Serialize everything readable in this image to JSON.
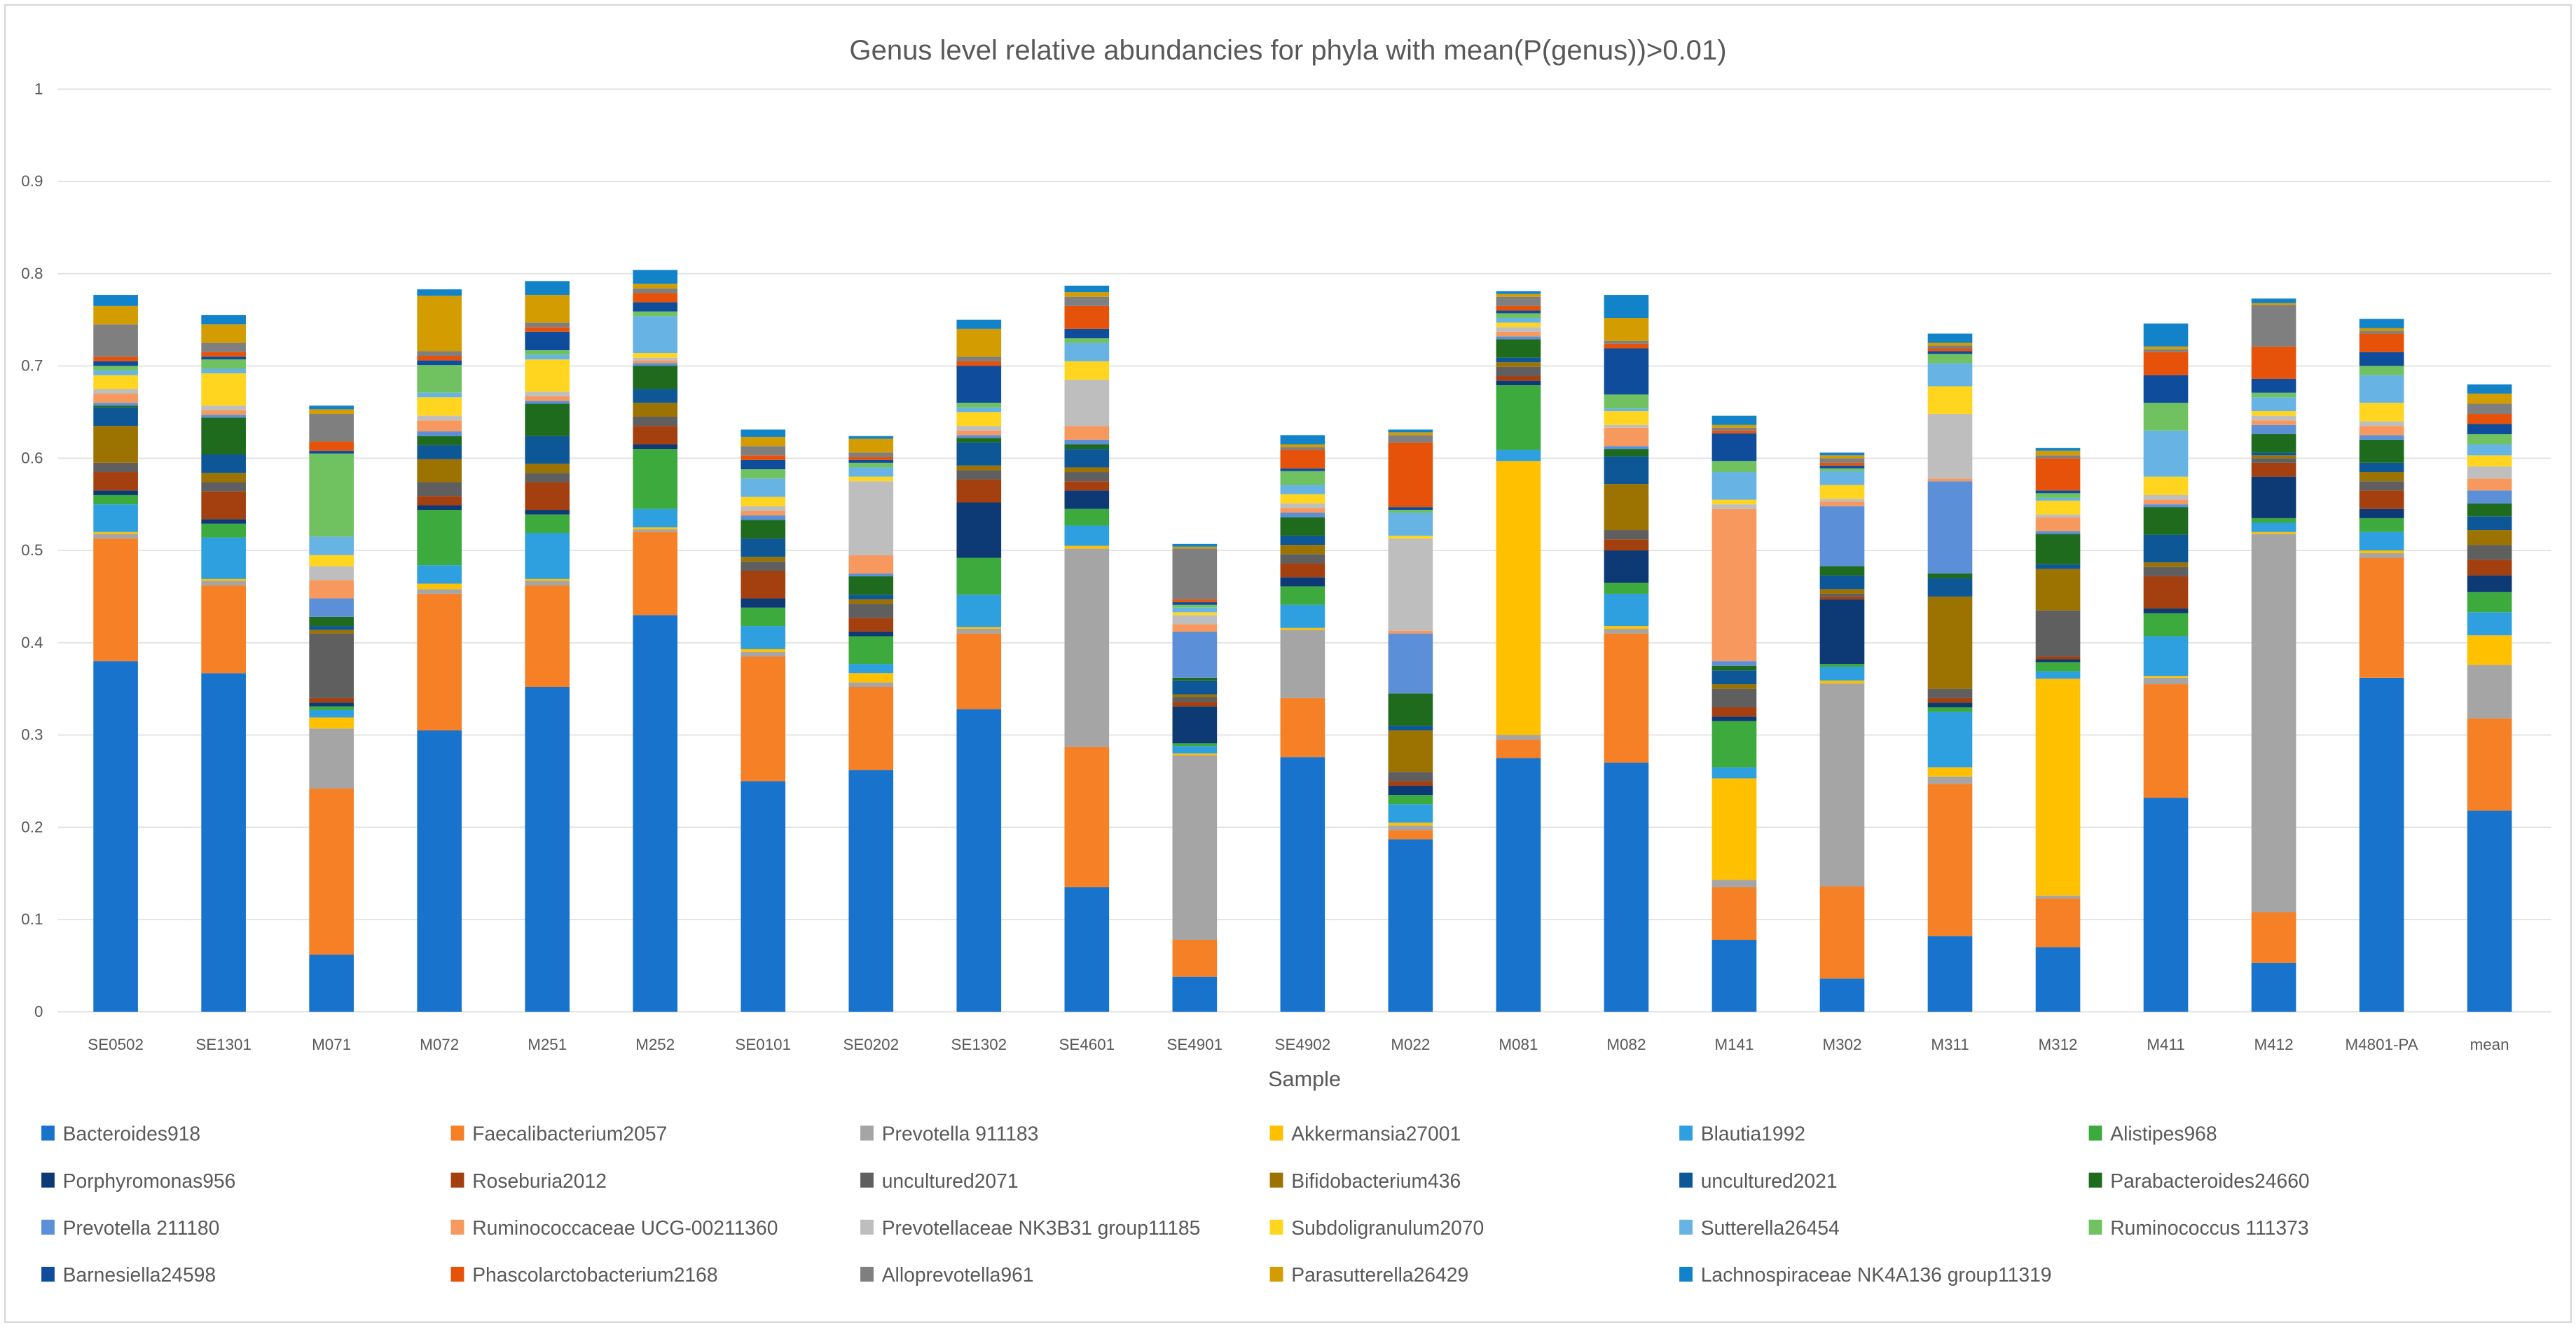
{
  "chart_data": {
    "type": "bar",
    "stacked": true,
    "title": "Genus level relative abundancies for phyla with mean(P(genus))>0.01)",
    "xlabel": "Sample",
    "ylabel": "",
    "ylim": [
      0,
      1
    ],
    "yticks": [
      "0",
      "0.1",
      "0.2",
      "0.3",
      "0.4",
      "0.5",
      "0.6",
      "0.7",
      "0.8",
      "0.9",
      "1"
    ],
    "grid": true,
    "legend_position": "bottom",
    "categories": [
      "SE0502",
      "SE1301",
      "M071",
      "M072",
      "M251",
      "M252",
      "SE0101",
      "SE0202",
      "SE1302",
      "SE4601",
      "SE4901",
      "SE4902",
      "M022",
      "M081",
      "M082",
      "M141",
      "M302",
      "M311",
      "M312",
      "M411",
      "M412",
      "M4801-PA",
      "mean"
    ],
    "series": [
      {
        "name": "Bacteroides918",
        "color": "#1873CC",
        "values": [
          0.38,
          0.367,
          0.062,
          0.305,
          0.352,
          0.43,
          0.25,
          0.262,
          0.328,
          0.135,
          0.038,
          0.276,
          0.187,
          0.275,
          0.27,
          0.078,
          0.036,
          0.082,
          0.07,
          0.232,
          0.053,
          0.362,
          0.218
        ]
      },
      {
        "name": "Faecalibacterium2057",
        "color": "#F58025",
        "values": [
          0.133,
          0.095,
          0.18,
          0.148,
          0.11,
          0.09,
          0.135,
          0.09,
          0.082,
          0.152,
          0.04,
          0.064,
          0.01,
          0.02,
          0.14,
          0.057,
          0.1,
          0.165,
          0.053,
          0.123,
          0.055,
          0.13,
          0.1
        ]
      },
      {
        "name": "Prevotella 911183",
        "color": "#A5A5A5",
        "values": [
          0.005,
          0.005,
          0.065,
          0.005,
          0.005,
          0.003,
          0.005,
          0.005,
          0.005,
          0.215,
          0.2,
          0.074,
          0.005,
          0.005,
          0.005,
          0.008,
          0.22,
          0.008,
          0.003,
          0.007,
          0.41,
          0.005,
          0.058
        ]
      },
      {
        "name": "Akkermansia27001",
        "color": "#FFC000",
        "values": [
          0.002,
          0.002,
          0.012,
          0.006,
          0.002,
          0.002,
          0.003,
          0.01,
          0.002,
          0.003,
          0.002,
          0.002,
          0.003,
          0.297,
          0.003,
          0.11,
          0.003,
          0.01,
          0.235,
          0.002,
          0.002,
          0.003,
          0.032
        ]
      },
      {
        "name": "Blautia1992",
        "color": "#2FA0DF",
        "values": [
          0.03,
          0.045,
          0.008,
          0.02,
          0.05,
          0.02,
          0.025,
          0.01,
          0.035,
          0.022,
          0.008,
          0.025,
          0.02,
          0.012,
          0.035,
          0.012,
          0.015,
          0.06,
          0.008,
          0.043,
          0.01,
          0.02,
          0.025
        ]
      },
      {
        "name": "Alistipes968",
        "color": "#3DAA3D",
        "values": [
          0.01,
          0.015,
          0.004,
          0.06,
          0.02,
          0.065,
          0.02,
          0.03,
          0.04,
          0.018,
          0.003,
          0.02,
          0.01,
          0.07,
          0.012,
          0.05,
          0.003,
          0.005,
          0.01,
          0.025,
          0.005,
          0.015,
          0.022
        ]
      },
      {
        "name": "Porphyromonas956",
        "color": "#0D3A75",
        "values": [
          0.005,
          0.005,
          0.004,
          0.005,
          0.005,
          0.005,
          0.01,
          0.005,
          0.06,
          0.02,
          0.04,
          0.01,
          0.01,
          0.005,
          0.035,
          0.005,
          0.07,
          0.005,
          0.003,
          0.005,
          0.045,
          0.01,
          0.018
        ]
      },
      {
        "name": "Roseburia2012",
        "color": "#A4400F",
        "values": [
          0.02,
          0.03,
          0.005,
          0.01,
          0.03,
          0.02,
          0.03,
          0.015,
          0.025,
          0.01,
          0.005,
          0.015,
          0.005,
          0.005,
          0.012,
          0.01,
          0.003,
          0.005,
          0.003,
          0.035,
          0.015,
          0.02,
          0.017
        ]
      },
      {
        "name": "uncultured2071",
        "color": "#5F5F5F",
        "values": [
          0.01,
          0.01,
          0.07,
          0.015,
          0.01,
          0.01,
          0.01,
          0.015,
          0.01,
          0.01,
          0.005,
          0.01,
          0.01,
          0.01,
          0.01,
          0.02,
          0.003,
          0.01,
          0.05,
          0.01,
          0.005,
          0.01,
          0.016
        ]
      },
      {
        "name": "Bifidobacterium436",
        "color": "#9C7200",
        "values": [
          0.04,
          0.01,
          0.004,
          0.025,
          0.01,
          0.015,
          0.005,
          0.005,
          0.005,
          0.005,
          0.003,
          0.01,
          0.045,
          0.005,
          0.05,
          0.005,
          0.005,
          0.1,
          0.045,
          0.005,
          0.003,
          0.01,
          0.016
        ]
      },
      {
        "name": "uncultured2021",
        "color": "#0E5796",
        "values": [
          0.02,
          0.02,
          0.004,
          0.015,
          0.03,
          0.015,
          0.02,
          0.005,
          0.025,
          0.02,
          0.015,
          0.01,
          0.005,
          0.005,
          0.03,
          0.015,
          0.015,
          0.02,
          0.005,
          0.03,
          0.003,
          0.01,
          0.015
        ]
      },
      {
        "name": "Parabacteroides24660",
        "color": "#1E6B1E",
        "values": [
          0.002,
          0.04,
          0.01,
          0.01,
          0.035,
          0.025,
          0.02,
          0.02,
          0.005,
          0.005,
          0.003,
          0.02,
          0.035,
          0.02,
          0.008,
          0.005,
          0.01,
          0.005,
          0.033,
          0.03,
          0.02,
          0.025,
          0.014
        ]
      },
      {
        "name": "Prevotella 211180",
        "color": "#5B8FD8",
        "values": [
          0.003,
          0.003,
          0.02,
          0.005,
          0.003,
          0.003,
          0.005,
          0.003,
          0.003,
          0.005,
          0.05,
          0.005,
          0.065,
          0.003,
          0.003,
          0.005,
          0.065,
          0.1,
          0.003,
          0.003,
          0.01,
          0.005,
          0.014
        ]
      },
      {
        "name": "Ruminococcaceae UCG-00211360",
        "color": "#F7995F",
        "values": [
          0.01,
          0.005,
          0.02,
          0.012,
          0.005,
          0.003,
          0.005,
          0.02,
          0.005,
          0.015,
          0.008,
          0.005,
          0.003,
          0.005,
          0.02,
          0.165,
          0.005,
          0.003,
          0.015,
          0.005,
          0.005,
          0.01,
          0.013
        ]
      },
      {
        "name": "Prevotellaceae NK3B31 group11185",
        "color": "#BEBEBE",
        "values": [
          0.005,
          0.005,
          0.015,
          0.005,
          0.005,
          0.003,
          0.005,
          0.08,
          0.005,
          0.05,
          0.01,
          0.005,
          0.1,
          0.005,
          0.003,
          0.005,
          0.003,
          0.07,
          0.003,
          0.005,
          0.005,
          0.005,
          0.013
        ]
      },
      {
        "name": "Subdoligranulum2070",
        "color": "#FFD520",
        "values": [
          0.015,
          0.035,
          0.012,
          0.02,
          0.035,
          0.005,
          0.01,
          0.005,
          0.015,
          0.02,
          0.003,
          0.01,
          0.003,
          0.005,
          0.015,
          0.005,
          0.015,
          0.03,
          0.015,
          0.02,
          0.005,
          0.02,
          0.012
        ]
      },
      {
        "name": "Sutterella26454",
        "color": "#67B4E4",
        "values": [
          0.005,
          0.005,
          0.02,
          0.005,
          0.005,
          0.04,
          0.02,
          0.01,
          0.005,
          0.02,
          0.005,
          0.01,
          0.025,
          0.005,
          0.003,
          0.03,
          0.015,
          0.025,
          0.003,
          0.05,
          0.015,
          0.03,
          0.012
        ]
      },
      {
        "name": "Ruminococcus 111373",
        "color": "#70C260",
        "values": [
          0.005,
          0.01,
          0.09,
          0.03,
          0.005,
          0.005,
          0.01,
          0.005,
          0.005,
          0.005,
          0.003,
          0.015,
          0.003,
          0.005,
          0.015,
          0.012,
          0.003,
          0.01,
          0.005,
          0.03,
          0.005,
          0.01,
          0.011
        ]
      },
      {
        "name": "Barnesiella24598",
        "color": "#0F4C9B",
        "values": [
          0.005,
          0.003,
          0.003,
          0.005,
          0.02,
          0.01,
          0.01,
          0.003,
          0.04,
          0.01,
          0.003,
          0.003,
          0.003,
          0.003,
          0.05,
          0.03,
          0.003,
          0.003,
          0.003,
          0.03,
          0.015,
          0.015,
          0.011
        ]
      },
      {
        "name": "Phascolarctobacterium2168",
        "color": "#E6520A",
        "values": [
          0.005,
          0.005,
          0.01,
          0.005,
          0.005,
          0.01,
          0.005,
          0.003,
          0.005,
          0.025,
          0.003,
          0.02,
          0.07,
          0.005,
          0.005,
          0.003,
          0.003,
          0.003,
          0.035,
          0.025,
          0.035,
          0.02,
          0.011
        ]
      },
      {
        "name": "Alloprevotella961",
        "color": "#7F7F7F",
        "values": [
          0.035,
          0.01,
          0.03,
          0.005,
          0.005,
          0.005,
          0.01,
          0.005,
          0.005,
          0.01,
          0.055,
          0.003,
          0.008,
          0.01,
          0.003,
          0.003,
          0.005,
          0.003,
          0.003,
          0.003,
          0.045,
          0.003,
          0.011
        ]
      },
      {
        "name": "Parasutterella26429",
        "color": "#D39C00",
        "values": [
          0.02,
          0.02,
          0.005,
          0.06,
          0.03,
          0.005,
          0.01,
          0.015,
          0.03,
          0.005,
          0.002,
          0.003,
          0.003,
          0.003,
          0.025,
          0.003,
          0.003,
          0.003,
          0.005,
          0.003,
          0.002,
          0.003,
          0.011
        ]
      },
      {
        "name": "Lachnospiraceae NK4A136 group11319",
        "color": "#1383C9",
        "values": [
          0.012,
          0.01,
          0.004,
          0.007,
          0.015,
          0.015,
          0.008,
          0.003,
          0.01,
          0.007,
          0.003,
          0.01,
          0.003,
          0.003,
          0.025,
          0.01,
          0.003,
          0.01,
          0.003,
          0.025,
          0.005,
          0.01,
          0.01
        ]
      }
    ]
  }
}
